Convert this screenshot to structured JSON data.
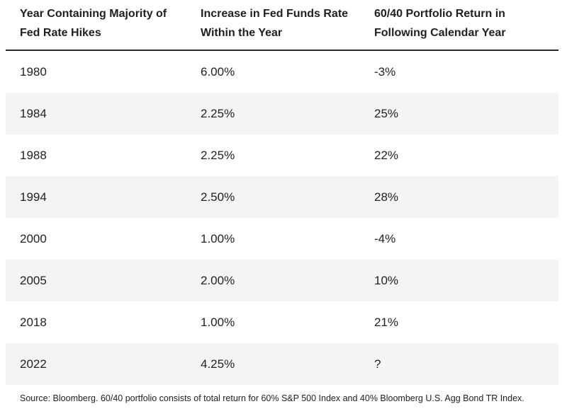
{
  "table": {
    "headers": {
      "col1_line1": "Year Containing Majority of",
      "col1_line2": "Fed Rate Hikes",
      "col2_line1": "Increase in Fed Funds Rate",
      "col2_line2": "Within the Year",
      "col3_line1": "60/40 Portfolio Return in",
      "col3_line2": "Following Calendar Year"
    },
    "rows": [
      {
        "year": "1980",
        "increase": "6.00%",
        "return": "-3%"
      },
      {
        "year": "1984",
        "increase": "2.25%",
        "return": "25%"
      },
      {
        "year": "1988",
        "increase": "2.25%",
        "return": "22%"
      },
      {
        "year": "1994",
        "increase": "2.50%",
        "return": "28%"
      },
      {
        "year": "2000",
        "increase": "1.00%",
        "return": "-4%"
      },
      {
        "year": "2005",
        "increase": "2.00%",
        "return": "10%"
      },
      {
        "year": "2018",
        "increase": "1.00%",
        "return": "21%"
      },
      {
        "year": "2022",
        "increase": "4.25%",
        "return": "?"
      }
    ]
  },
  "footer": {
    "source": "Source: Bloomberg. 60/40 portfolio consists of total return for 60% S&P 500 Index and 40% Bloomberg U.S. Agg Bond TR Index."
  },
  "colors": {
    "stripe": "#f4f4f4",
    "rule": "#2a2a2a"
  }
}
